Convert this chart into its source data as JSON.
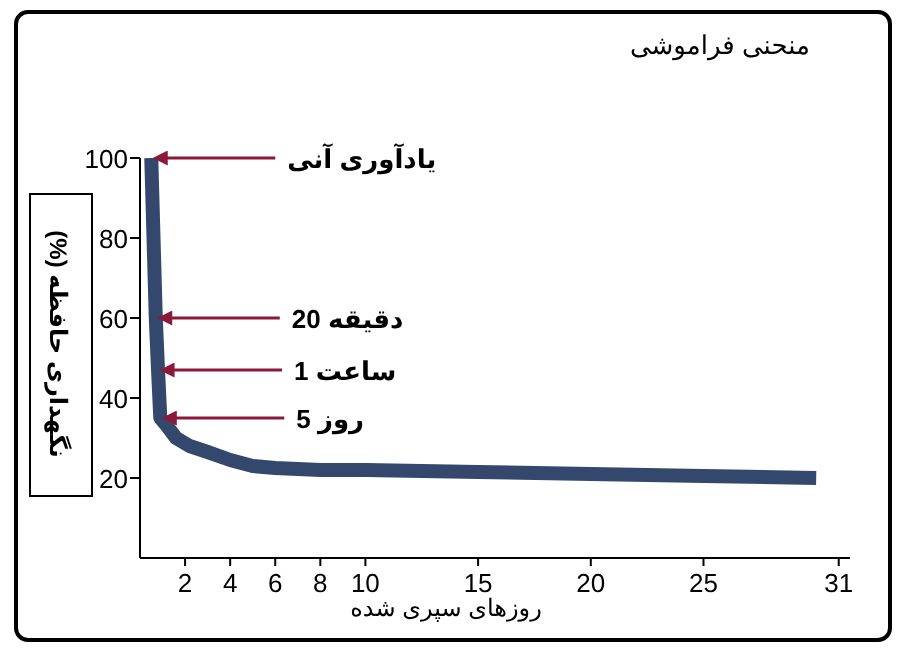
{
  "chart_data": {
    "type": "line",
    "title": "منحنی فراموشی",
    "xlabel": "روزهای سپری شده",
    "ylabel": "نگهداری حافظه (%)",
    "x": [
      0.5,
      0.6,
      0.7,
      0.8,
      0.9,
      1.2,
      1.6,
      2.2,
      3,
      4,
      5,
      6,
      8,
      10,
      15,
      20,
      25,
      30
    ],
    "series": [
      {
        "color": "#34486e",
        "values": [
          100,
          80,
          60,
          47,
          35,
          33,
          30,
          28,
          26.5,
          24.5,
          23,
          22.5,
          22,
          22,
          21.5,
          21,
          20.5,
          20
        ]
      }
    ],
    "xlim": [
      0,
      31.5
    ],
    "ylim": [
      0,
      100
    ],
    "xticks": [
      2,
      4,
      6,
      8,
      10,
      15,
      20,
      25,
      31
    ],
    "yticks": [
      20,
      40,
      60,
      80,
      100
    ],
    "annotations": [
      {
        "text": "یادآوری آنی",
        "x": 0.5,
        "y": 100
      },
      {
        "text": "دقیقه 20",
        "x": 0.7,
        "y": 60
      },
      {
        "text": "ساعت 1",
        "x": 0.8,
        "y": 47
      },
      {
        "text": "روز 5",
        "x": 0.9,
        "y": 35
      }
    ],
    "grid": false,
    "marker": "none",
    "line_style": "solid"
  }
}
